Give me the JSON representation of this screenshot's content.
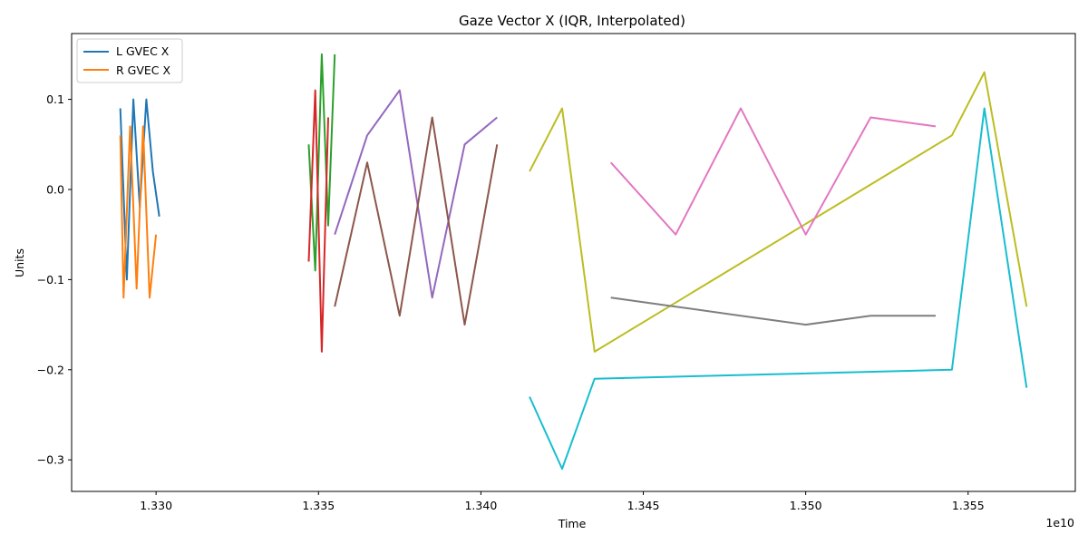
{
  "chart_data": {
    "type": "line",
    "title": "Gaze Vector X (IQR, Interpolated)",
    "xlabel": "Time",
    "ylabel": "Units",
    "x_offset_label": "1e10",
    "xlim": [
      1.3274,
      1.3583
    ],
    "ylim": [
      -0.335,
      0.173
    ],
    "x_ticks": [
      1.33,
      1.335,
      1.34,
      1.345,
      1.35,
      1.355
    ],
    "x_tick_labels": [
      "1.330",
      "1.335",
      "1.340",
      "1.345",
      "1.350",
      "1.355"
    ],
    "y_ticks": [
      0.1,
      0.0,
      -0.1,
      -0.2,
      -0.3
    ],
    "y_tick_labels": [
      "0.1",
      "0.0",
      "−0.1",
      "−0.2",
      "−0.3"
    ],
    "grid": false,
    "legend": {
      "position": "top-left",
      "entries": [
        {
          "label": "L GVEC X",
          "color": "#1f77b4"
        },
        {
          "label": "R GVEC X",
          "color": "#ff7f0e"
        }
      ]
    },
    "series": [
      {
        "name": "L GVEC X",
        "color": "#1f77b4",
        "x": [
          1.3289,
          1.3291,
          1.3293,
          1.3295,
          1.3297,
          1.3299,
          1.3301
        ],
        "y": [
          0.09,
          -0.1,
          0.1,
          -0.02,
          0.1,
          0.02,
          -0.03
        ]
      },
      {
        "name": "R GVEC X",
        "color": "#ff7f0e",
        "x": [
          1.3289,
          1.329,
          1.3292,
          1.3294,
          1.3296,
          1.3298,
          1.33
        ],
        "y": [
          0.06,
          -0.12,
          0.07,
          -0.11,
          0.07,
          -0.12,
          -0.05
        ]
      },
      {
        "color": "#2ca02c",
        "x": [
          1.3347,
          1.3349,
          1.3351,
          1.3353,
          1.3355
        ],
        "y": [
          0.05,
          -0.09,
          0.15,
          -0.04,
          0.15
        ]
      },
      {
        "color": "#d62728",
        "x": [
          1.3347,
          1.3349,
          1.3351,
          1.3353
        ],
        "y": [
          -0.08,
          0.11,
          -0.18,
          0.08
        ]
      },
      {
        "color": "#9467bd",
        "x": [
          1.3355,
          1.3365,
          1.3375,
          1.3385,
          1.3395,
          1.3405
        ],
        "y": [
          -0.05,
          0.06,
          0.11,
          -0.12,
          0.05,
          0.08
        ]
      },
      {
        "color": "#8c564b",
        "x": [
          1.3355,
          1.3365,
          1.3375,
          1.3385,
          1.3395,
          1.3405
        ],
        "y": [
          -0.13,
          0.03,
          -0.14,
          0.08,
          -0.15,
          0.05
        ]
      },
      {
        "color": "#bcbd22",
        "x": [
          1.3415,
          1.3425,
          1.3435,
          1.3545,
          1.3555,
          1.3568
        ],
        "y": [
          0.02,
          0.09,
          -0.18,
          0.06,
          0.13,
          -0.13
        ]
      },
      {
        "color": "#17becf",
        "x": [
          1.3415,
          1.3425,
          1.3435,
          1.3545,
          1.3555,
          1.3568
        ],
        "y": [
          -0.23,
          -0.31,
          -0.21,
          -0.2,
          0.09,
          -0.22
        ]
      },
      {
        "color": "#e377c2",
        "x": [
          1.344,
          1.346,
          1.348,
          1.35,
          1.352,
          1.354
        ],
        "y": [
          0.03,
          -0.05,
          0.09,
          -0.05,
          0.08,
          0.07
        ]
      },
      {
        "color": "#7f7f7f",
        "x": [
          1.344,
          1.346,
          1.348,
          1.35,
          1.352,
          1.354
        ],
        "y": [
          -0.12,
          -0.13,
          -0.14,
          -0.15,
          -0.14,
          -0.14
        ]
      }
    ]
  }
}
